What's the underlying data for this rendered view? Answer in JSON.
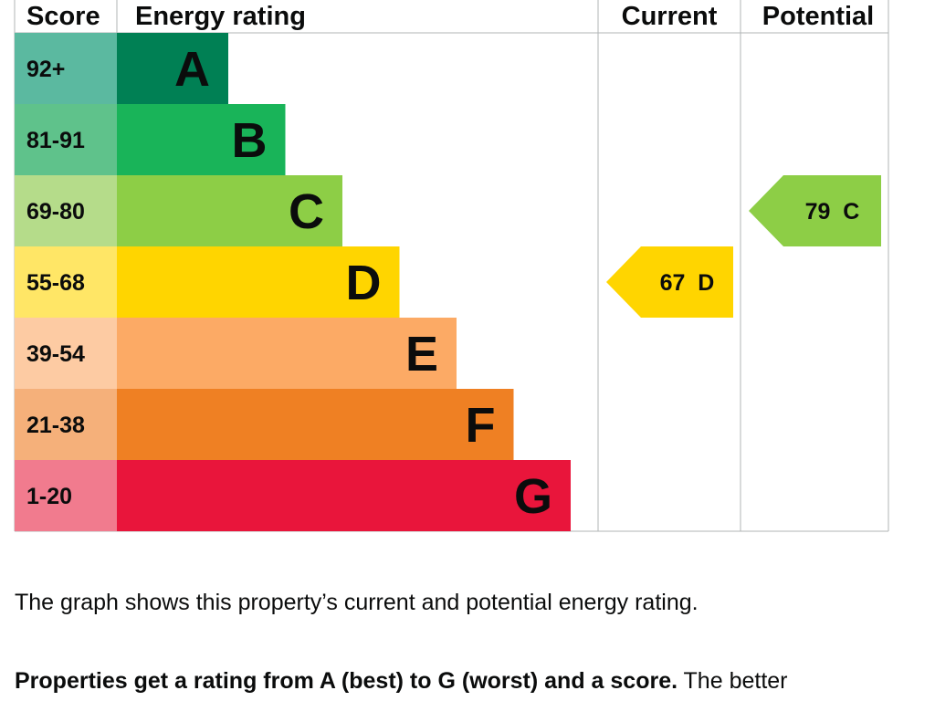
{
  "chart_data": {
    "type": "bar",
    "title": "",
    "headers": {
      "score": "Score",
      "rating": "Energy rating",
      "current": "Current",
      "potential": "Potential"
    },
    "bands": [
      {
        "letter": "A",
        "range": "92+",
        "min": 92,
        "max": 100,
        "color": "#008054",
        "score_color": "#5bb9a0"
      },
      {
        "letter": "B",
        "range": "81-91",
        "min": 81,
        "max": 91,
        "color": "#19b459",
        "score_color": "#5fc28b"
      },
      {
        "letter": "C",
        "range": "69-80",
        "min": 69,
        "max": 80,
        "color": "#8dce46",
        "score_color": "#b5dc8a"
      },
      {
        "letter": "D",
        "range": "55-68",
        "min": 55,
        "max": 68,
        "color": "#ffd500",
        "score_color": "#ffe666"
      },
      {
        "letter": "E",
        "range": "39-54",
        "min": 39,
        "max": 54,
        "color": "#fcaa65",
        "score_color": "#fdcba3"
      },
      {
        "letter": "F",
        "range": "21-38",
        "min": 21,
        "max": 38,
        "color": "#ef8023",
        "score_color": "#f5b07a"
      },
      {
        "letter": "G",
        "range": "1-20",
        "min": 1,
        "max": 20,
        "color": "#e9153b",
        "score_color": "#f17b8e"
      }
    ],
    "current": {
      "score": 67,
      "letter": "D",
      "label": "67  D",
      "color": "#ffd500"
    },
    "potential": {
      "score": 79,
      "letter": "C",
      "label": "79  C",
      "color": "#8dce46"
    }
  },
  "description": {
    "line1": "The graph shows this property’s current and potential energy rating.",
    "line2_bold": "Properties get a rating from A (best) to G (worst) and a score.",
    "line2_rest": " The better"
  }
}
